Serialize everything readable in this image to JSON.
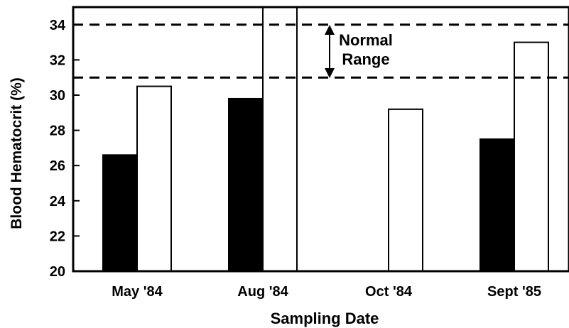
{
  "chart_data": {
    "type": "bar",
    "title": "",
    "xlabel": "Sampling Date",
    "ylabel": "Blood Hematocrit (%)",
    "ylim": [
      20,
      35
    ],
    "yticks": [
      "20",
      "22",
      "24",
      "26",
      "28",
      "30",
      "32",
      "34"
    ],
    "categories": [
      "May '84",
      "Aug '84",
      "Oct '84",
      "Sept '85"
    ],
    "series": [
      {
        "fill": "#000000",
        "values": [
          26.6,
          29.8,
          null,
          27.5
        ]
      },
      {
        "fill": "#ffffff",
        "values": [
          30.5,
          35.0,
          29.2,
          33.0
        ]
      }
    ],
    "reference_lines": [
      34,
      31
    ],
    "annotation": {
      "lines": [
        "Normal",
        "Range"
      ],
      "arrow": "double-headed vertical",
      "spans": [
        31,
        34
      ]
    },
    "grid": false,
    "legend": "none"
  }
}
